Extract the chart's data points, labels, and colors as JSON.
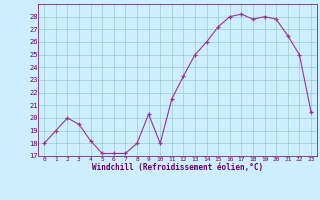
{
  "x": [
    0,
    1,
    2,
    3,
    4,
    5,
    6,
    7,
    8,
    9,
    10,
    11,
    12,
    13,
    14,
    15,
    16,
    17,
    18,
    19,
    20,
    21,
    22,
    23
  ],
  "y": [
    18.0,
    19.0,
    20.0,
    19.5,
    18.2,
    17.2,
    17.2,
    17.2,
    18.0,
    20.3,
    18.0,
    21.5,
    23.3,
    25.0,
    26.0,
    27.2,
    28.0,
    28.2,
    27.8,
    28.0,
    27.8,
    26.5,
    25.0,
    20.5
  ],
  "title": "Windchill (Refroidissement éolien,°C)",
  "ylim_min": 17,
  "ylim_max": 29,
  "yticks": [
    17,
    18,
    19,
    20,
    21,
    22,
    23,
    24,
    25,
    26,
    27,
    28
  ],
  "line_color": "#993399",
  "marker_color": "#993399",
  "bg_color": "#cceeff",
  "grid_color": "#99cccc",
  "label_color": "#660066",
  "tick_color": "#660066",
  "spine_color": "#660066"
}
